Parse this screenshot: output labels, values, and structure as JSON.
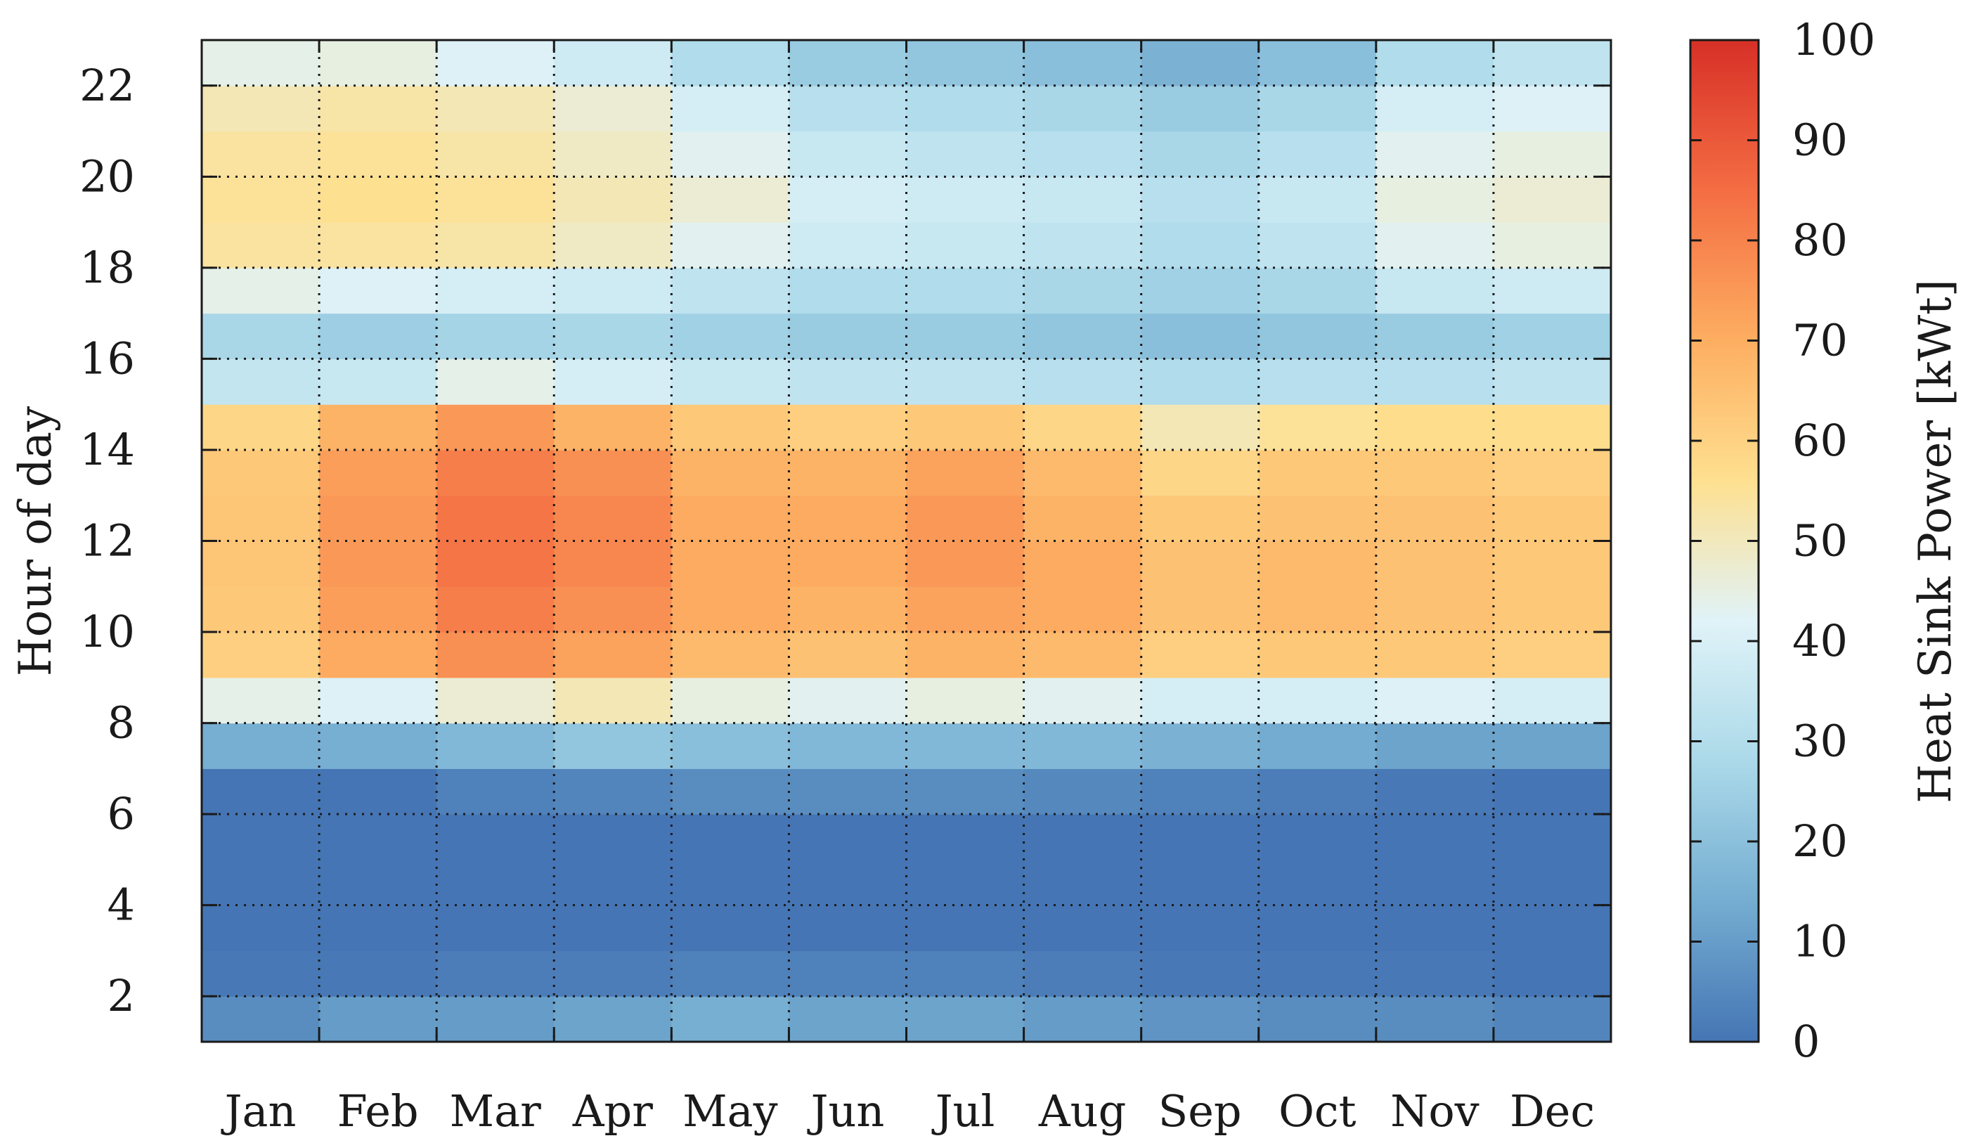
{
  "chart_data": {
    "type": "heatmap",
    "title": "",
    "xlabel": "",
    "ylabel": "Hour of day",
    "colorbar_label": "Heat Sink Power [kWt]",
    "colorbar_ticks": [
      0,
      10,
      20,
      30,
      40,
      50,
      60,
      70,
      80,
      90,
      100
    ],
    "colorbar_range": [
      0,
      100
    ],
    "colormap": [
      "#4575b4",
      "#74add1",
      "#abd9e9",
      "#e0f3f8",
      "#fee090",
      "#fdae61",
      "#f46d43",
      "#d73027"
    ],
    "x_categories": [
      "Jan",
      "Feb",
      "Mar",
      "Apr",
      "May",
      "Jun",
      "Jul",
      "Aug",
      "Sep",
      "Oct",
      "Nov",
      "Dec"
    ],
    "y_ticks": [
      2,
      4,
      6,
      8,
      10,
      12,
      14,
      16,
      18,
      20,
      22
    ],
    "y_range": [
      1,
      23
    ],
    "grid": true,
    "hours": [
      1,
      2,
      3,
      4,
      5,
      6,
      7,
      8,
      9,
      10,
      11,
      12,
      13,
      14,
      15,
      16,
      17,
      18,
      19,
      20,
      21,
      22
    ],
    "monthly_hourly_mean_kWt": [
      {
        "month": "Jan",
        "values": [
          6,
          1,
          0,
          0,
          0,
          0,
          15,
          45,
          62,
          64,
          65,
          65,
          64,
          60,
          35,
          28,
          45,
          55,
          56,
          55,
          52,
          45
        ]
      },
      {
        "month": "Feb",
        "values": [
          10,
          1,
          0,
          0,
          0,
          0,
          15,
          42,
          72,
          75,
          76,
          76,
          75,
          70,
          36,
          25,
          42,
          55,
          57,
          56,
          54,
          46
        ]
      },
      {
        "month": "Mar",
        "values": [
          10,
          2,
          0,
          0,
          0,
          3,
          18,
          48,
          78,
          82,
          84,
          84,
          82,
          76,
          45,
          27,
          40,
          54,
          56,
          54,
          52,
          42
        ]
      },
      {
        "month": "Apr",
        "values": [
          12,
          2,
          0,
          0,
          0,
          4,
          22,
          52,
          74,
          78,
          80,
          80,
          78,
          70,
          40,
          28,
          38,
          50,
          52,
          50,
          48,
          38
        ]
      },
      {
        "month": "May",
        "values": [
          15,
          3,
          0,
          0,
          0,
          6,
          20,
          46,
          68,
          72,
          72,
          72,
          70,
          64,
          36,
          26,
          34,
          44,
          48,
          44,
          40,
          30
        ]
      },
      {
        "month": "Jun",
        "values": [
          12,
          3,
          0,
          0,
          0,
          6,
          18,
          44,
          66,
          70,
          72,
          72,
          70,
          62,
          34,
          24,
          30,
          38,
          40,
          36,
          32,
          24
        ]
      },
      {
        "month": "Jul",
        "values": [
          12,
          3,
          0,
          0,
          0,
          6,
          18,
          46,
          70,
          74,
          76,
          76,
          74,
          64,
          34,
          24,
          30,
          36,
          38,
          34,
          30,
          22
        ]
      },
      {
        "month": "Aug",
        "values": [
          10,
          2,
          0,
          0,
          0,
          5,
          18,
          44,
          68,
          72,
          72,
          70,
          68,
          60,
          32,
          22,
          28,
          34,
          36,
          32,
          28,
          20
        ]
      },
      {
        "month": "Sep",
        "values": [
          8,
          1,
          0,
          0,
          0,
          3,
          16,
          40,
          62,
          66,
          66,
          64,
          60,
          52,
          30,
          20,
          26,
          30,
          32,
          28,
          24,
          16
        ]
      },
      {
        "month": "Oct",
        "values": [
          6,
          1,
          0,
          0,
          0,
          2,
          14,
          40,
          64,
          68,
          68,
          66,
          64,
          56,
          32,
          22,
          28,
          34,
          36,
          32,
          28,
          20
        ]
      },
      {
        "month": "Nov",
        "values": [
          6,
          1,
          0,
          0,
          0,
          1,
          12,
          42,
          64,
          66,
          66,
          66,
          64,
          58,
          32,
          24,
          36,
          44,
          46,
          44,
          40,
          30
        ]
      },
      {
        "month": "Dec",
        "values": [
          4,
          0,
          0,
          0,
          0,
          0,
          12,
          40,
          62,
          64,
          64,
          64,
          62,
          58,
          34,
          26,
          38,
          46,
          48,
          46,
          42,
          34
        ]
      }
    ]
  }
}
